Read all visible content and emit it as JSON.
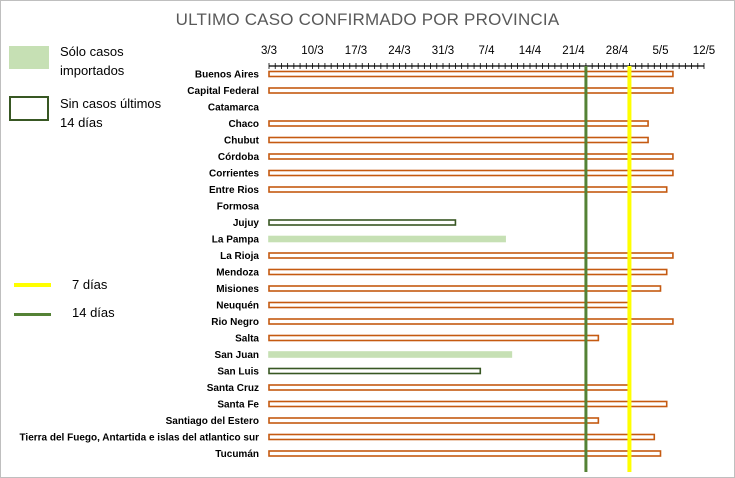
{
  "chart_data": {
    "type": "bar",
    "title": "ULTIMO CASO CONFIRMADO POR PROVINCIA",
    "x_ticks": [
      "3/3",
      "10/3",
      "17/3",
      "24/3",
      "31/3",
      "7/4",
      "14/4",
      "21/4",
      "28/4",
      "5/5",
      "12/5"
    ],
    "categories": [
      "Buenos Aires",
      "Capital Federal",
      "Catamarca",
      "Chaco",
      "Chubut",
      "Córdoba",
      "Corrientes",
      "Entre Rios",
      "Formosa",
      "Jujuy",
      "La Pampa",
      "La Rioja",
      "Mendoza",
      "Misiones",
      "Neuquén",
      "Rio Negro",
      "Salta",
      "San Juan",
      "San Luis",
      "Santa Cruz",
      "Santa Fe",
      "Santiago del Estero",
      "Tierra del Fuego, Antartida e islas del atlantico sur",
      "Tucumán"
    ],
    "days_since_3_3": [
      65,
      65,
      null,
      61,
      61,
      65,
      65,
      64,
      null,
      30,
      38,
      65,
      64,
      63,
      58,
      65,
      53,
      39,
      34,
      58,
      64,
      53,
      62,
      63
    ],
    "status": [
      "active",
      "active",
      "none",
      "active",
      "active",
      "active",
      "active",
      "active",
      "none",
      "no_cases_14_days",
      "imported_only",
      "active",
      "active",
      "active",
      "active",
      "active",
      "active",
      "imported_only",
      "no_cases_14_days",
      "active",
      "active",
      "active",
      "active",
      "active"
    ],
    "reference_lines": [
      {
        "label": "7 días",
        "day": 58,
        "color": "#ffff00"
      },
      {
        "label": "14 días",
        "day": 51,
        "color": "#548235"
      }
    ],
    "xlim": [
      0,
      70
    ],
    "colors": {
      "active_border": "#c55a11",
      "imported_fill": "#c6e0b4",
      "no_cases_border": "#385723",
      "line_7_days": "#ffff00",
      "line_14_days": "#548235"
    }
  },
  "legend": {
    "imported_label_1": "Sólo casos",
    "imported_label_2": "importados",
    "no_cases_label_1": "Sin casos últimos",
    "no_cases_label_2": "14 días",
    "line7_label": "7 días",
    "line14_label": "14 días"
  }
}
